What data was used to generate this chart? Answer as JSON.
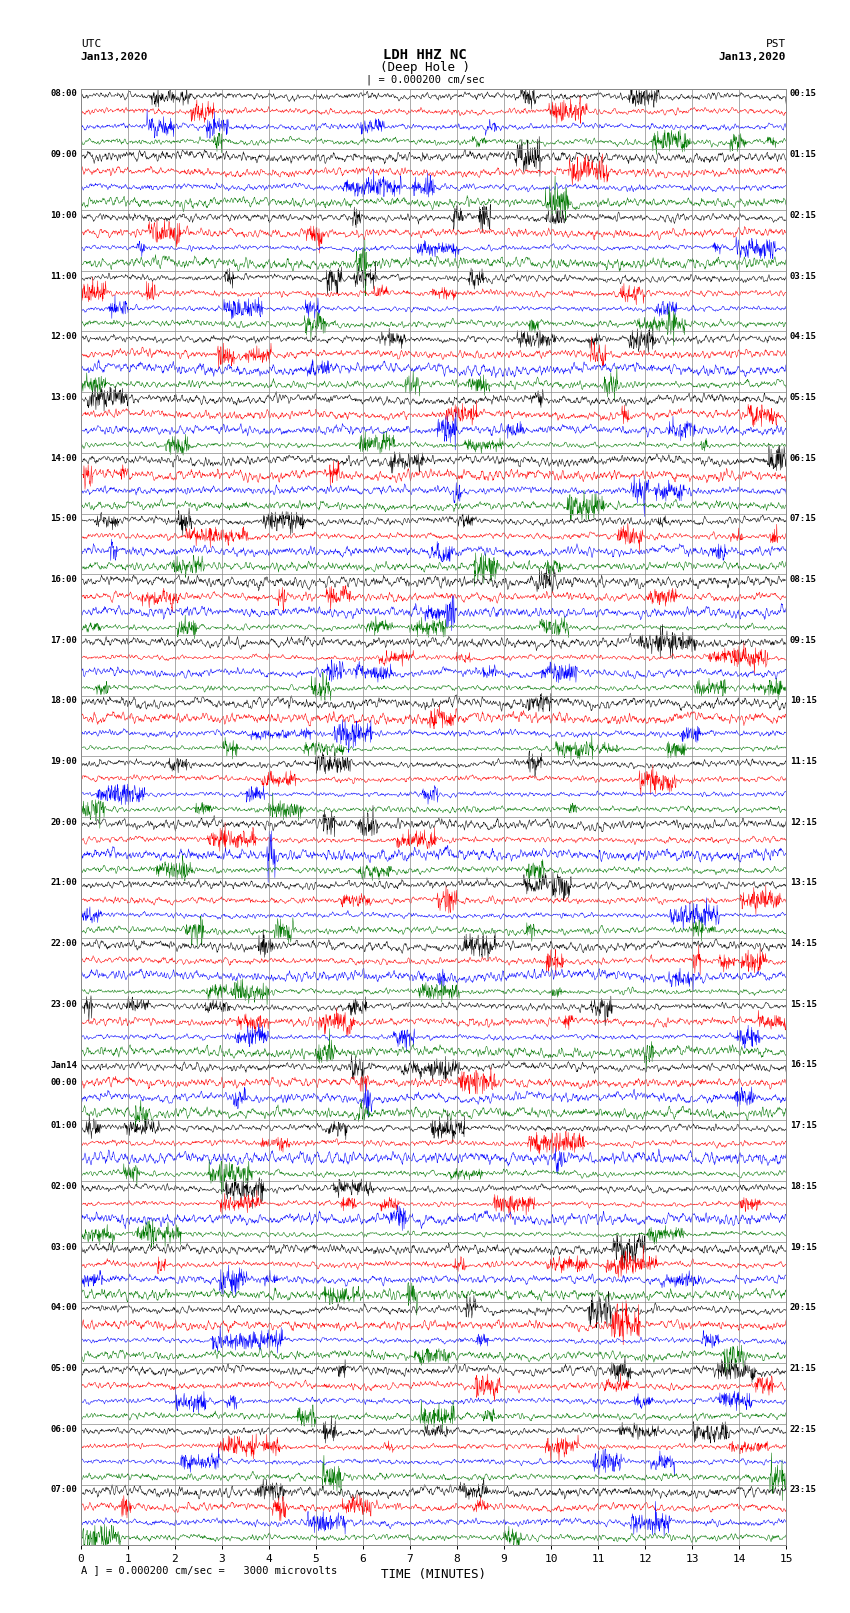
{
  "title_line1": "LDH HHZ NC",
  "title_line2": "(Deep Hole )",
  "scale_label": "| = 0.000200 cm/sec",
  "utc_label": "UTC",
  "pst_label": "PST",
  "date_label": "Jan13,2020",
  "xlabel": "TIME (MINUTES)",
  "left_times": [
    "08:00",
    "09:00",
    "10:00",
    "11:00",
    "12:00",
    "13:00",
    "14:00",
    "15:00",
    "16:00",
    "17:00",
    "18:00",
    "19:00",
    "20:00",
    "21:00",
    "22:00",
    "23:00",
    "00:00",
    "01:00",
    "02:00",
    "03:00",
    "04:00",
    "05:00",
    "06:00",
    "07:00"
  ],
  "left_times_date": [
    null,
    null,
    null,
    null,
    null,
    null,
    null,
    null,
    null,
    null,
    null,
    null,
    null,
    null,
    null,
    null,
    "Jan14",
    null,
    null,
    null,
    null,
    null,
    null,
    null
  ],
  "right_times": [
    "00:15",
    "01:15",
    "02:15",
    "03:15",
    "04:15",
    "05:15",
    "06:15",
    "07:15",
    "08:15",
    "09:15",
    "10:15",
    "11:15",
    "12:15",
    "13:15",
    "14:15",
    "15:15",
    "16:15",
    "17:15",
    "18:15",
    "19:15",
    "20:15",
    "21:15",
    "22:15",
    "23:15"
  ],
  "colors": [
    "#000000",
    "#ff0000",
    "#0000ff",
    "#007700"
  ],
  "num_rows": 24,
  "traces_per_row": 4,
  "fig_width": 8.5,
  "fig_height": 16.13,
  "xlim": [
    0,
    15
  ],
  "xticks": [
    0,
    1,
    2,
    3,
    4,
    5,
    6,
    7,
    8,
    9,
    10,
    11,
    12,
    13,
    14,
    15
  ],
  "bottom_note": "A ] = 0.000200 cm/sec =   3000 microvolts",
  "background_color": "#ffffff",
  "vline_color": "#888888",
  "hline_color": "#888888"
}
